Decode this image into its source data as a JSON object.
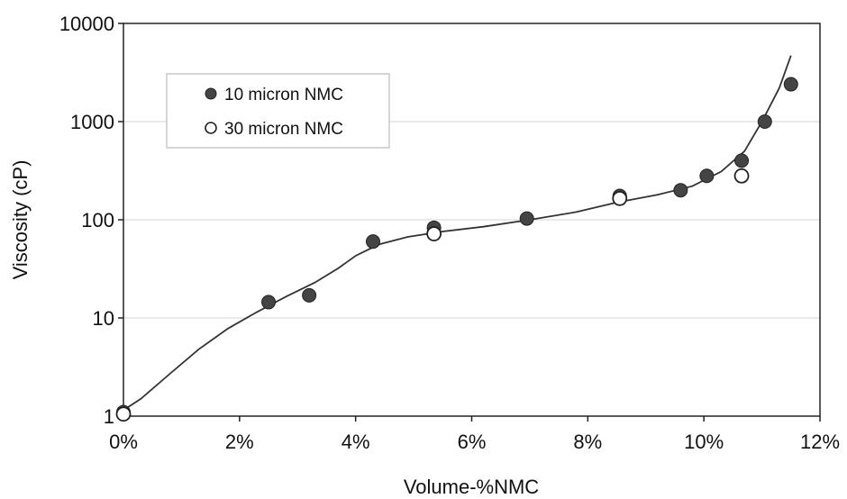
{
  "chart_data": {
    "type": "scatter",
    "xlabel": "Volume-%NMC",
    "ylabel": "Viscosity (cP)",
    "x_scale": "linear",
    "y_scale": "log",
    "xlim": [
      0,
      12
    ],
    "ylim": [
      1,
      10000
    ],
    "x_ticks": [
      0,
      2,
      4,
      6,
      8,
      10,
      12
    ],
    "x_tick_labels": [
      "0%",
      "2%",
      "4%",
      "6%",
      "8%",
      "10%",
      "12%"
    ],
    "y_ticks": [
      1,
      10,
      100,
      1000,
      10000
    ],
    "y_tick_labels": [
      "1",
      "10",
      "100",
      "1000",
      "10000"
    ],
    "grid": "horizontal",
    "legend_position": "top-left",
    "series": [
      {
        "name": "10 micron NMC",
        "marker": "filled-circle",
        "color": "#444444",
        "points": [
          {
            "x": 0.0,
            "y": 1.1
          },
          {
            "x": 2.5,
            "y": 14.5
          },
          {
            "x": 3.2,
            "y": 17
          },
          {
            "x": 4.3,
            "y": 60
          },
          {
            "x": 5.35,
            "y": 83
          },
          {
            "x": 6.95,
            "y": 103
          },
          {
            "x": 8.55,
            "y": 175
          },
          {
            "x": 9.6,
            "y": 200
          },
          {
            "x": 10.05,
            "y": 280
          },
          {
            "x": 10.65,
            "y": 400
          },
          {
            "x": 11.05,
            "y": 1000
          },
          {
            "x": 11.5,
            "y": 2400
          }
        ]
      },
      {
        "name": "30 micron NMC",
        "marker": "open-circle",
        "color": "#222222",
        "points": [
          {
            "x": 0.0,
            "y": 1.05
          },
          {
            "x": 5.35,
            "y": 72
          },
          {
            "x": 8.55,
            "y": 165
          },
          {
            "x": 10.65,
            "y": 280
          }
        ]
      }
    ],
    "trend_line": {
      "color": "#333333",
      "points": [
        {
          "x": 0.0,
          "y": 1.15
        },
        {
          "x": 0.3,
          "y": 1.5
        },
        {
          "x": 0.8,
          "y": 2.7
        },
        {
          "x": 1.3,
          "y": 4.8
        },
        {
          "x": 1.8,
          "y": 7.8
        },
        {
          "x": 2.3,
          "y": 11.5
        },
        {
          "x": 2.8,
          "y": 16.5
        },
        {
          "x": 3.3,
          "y": 23
        },
        {
          "x": 3.7,
          "y": 32
        },
        {
          "x": 4.0,
          "y": 43
        },
        {
          "x": 4.4,
          "y": 56
        },
        {
          "x": 4.9,
          "y": 67
        },
        {
          "x": 5.5,
          "y": 76
        },
        {
          "x": 6.2,
          "y": 85
        },
        {
          "x": 7.0,
          "y": 100
        },
        {
          "x": 7.8,
          "y": 120
        },
        {
          "x": 8.5,
          "y": 150
        },
        {
          "x": 9.2,
          "y": 180
        },
        {
          "x": 9.8,
          "y": 220
        },
        {
          "x": 10.3,
          "y": 310
        },
        {
          "x": 10.7,
          "y": 500
        },
        {
          "x": 11.0,
          "y": 1000
        },
        {
          "x": 11.3,
          "y": 2200
        },
        {
          "x": 11.5,
          "y": 4700
        }
      ]
    }
  }
}
